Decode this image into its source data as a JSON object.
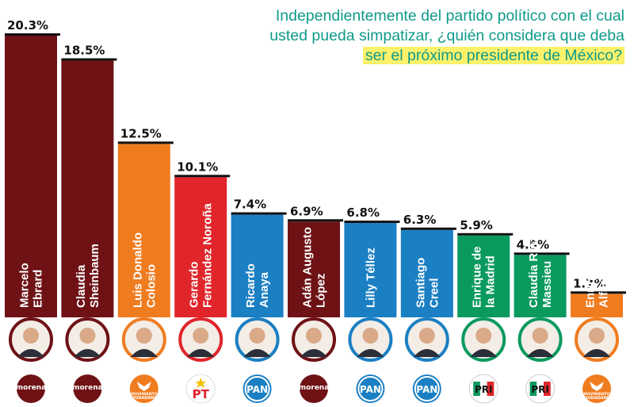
{
  "title": {
    "part1": "Independientemente del partido político con el cual usted pueda simpatizar, ¿quién considera que deba",
    "highlight": "ser el próximo presidente de México?"
  },
  "colors": {
    "morena": "#6e1216",
    "mc": "#f07c20",
    "pt": "#e0252b",
    "pan": "#1b7fc3",
    "pri": "#0a9a5e"
  },
  "chart_data": {
    "type": "bar",
    "title": "Independientemente del partido político con el cual usted pueda simpatizar, ¿quién considera que deba ser el próximo presidente de México?",
    "xlabel": "",
    "ylabel": "",
    "ylim": [
      0,
      20.3
    ],
    "categories": [
      [
        "Marcelo",
        "Ebrard"
      ],
      [
        "Claudia",
        "Sheinbaum"
      ],
      [
        "Luis Donaldo",
        "Colosio"
      ],
      [
        "Gerardo",
        "Fernández Noroña"
      ],
      [
        "Ricardo",
        "Anaya"
      ],
      [
        "Adán Augusto",
        "López"
      ],
      [
        "Lilly Téllez"
      ],
      [
        "Santiago",
        "Creel"
      ],
      [
        "Enrique de",
        "la Madrid"
      ],
      [
        "Claudia Ruiz",
        "Massieu"
      ],
      [
        "Enrique",
        "Alfaro"
      ]
    ],
    "values": [
      20.3,
      18.5,
      12.5,
      10.1,
      7.4,
      6.9,
      6.8,
      6.3,
      5.9,
      4.5,
      1.7
    ],
    "value_labels": [
      "20.3%",
      "18.5%",
      "12.5%",
      "10.1%",
      "7.4%",
      "6.9%",
      "6.8%",
      "6.3%",
      "5.9%",
      "4.5%",
      "1.7%"
    ],
    "parties": [
      "morena",
      "morena",
      "mc",
      "pt",
      "pan",
      "morena",
      "pan",
      "pan",
      "pri",
      "pri",
      "mc"
    ],
    "party_logos": {
      "morena": {
        "text": "morena",
        "sub": "La esperanza de México"
      },
      "mc": {
        "text": "MOVIMIENTO",
        "sub": "CIUDADANO"
      },
      "pt": {
        "text": "PT"
      },
      "pan": {
        "text": "PAN"
      },
      "pri": {
        "text": "PRI"
      }
    },
    "grid": false,
    "legend": "none"
  }
}
